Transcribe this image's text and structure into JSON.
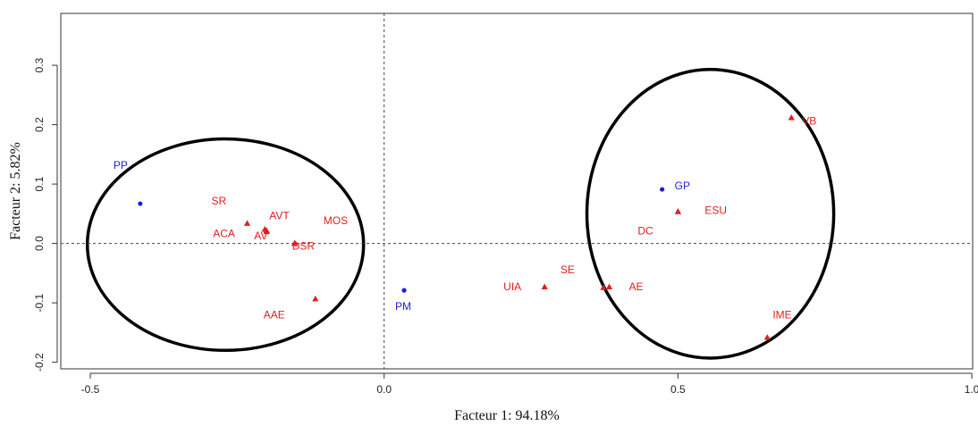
{
  "chart_data": {
    "type": "scatter",
    "title": "",
    "xlabel": "Facteur 1: 94.18%",
    "ylabel": "Facteur 2: 5.82%",
    "xlim": [
      -0.55,
      1.0
    ],
    "ylim": [
      -0.22,
      0.39
    ],
    "x_ticks": [
      -0.5,
      0.0,
      0.5,
      1.0
    ],
    "x_tick_labels": [
      "-0.5",
      "0.0",
      "0.5",
      "1.0"
    ],
    "y_ticks": [
      -0.2,
      -0.1,
      0.0,
      0.1,
      0.2,
      0.3
    ],
    "y_tick_labels": [
      "-0.2",
      "-0.1",
      "0.0",
      "0.1",
      "0.2",
      "0.3"
    ],
    "grid": false,
    "reference_lines": {
      "x": 0.0,
      "y": 0.0,
      "style": "dotted"
    },
    "series": [
      {
        "marker": "circle",
        "color": "#1f1fd6",
        "points": [
          {
            "label": "PP",
            "x": -0.415,
            "y": 0.067
          },
          {
            "label": "PM",
            "x": 0.034,
            "y": -0.079
          },
          {
            "label": "GP",
            "x": 0.473,
            "y": 0.091
          }
        ]
      },
      {
        "marker": "triangle",
        "color": "#e01e1e",
        "points": [
          {
            "label": "SR",
            "x": -0.233,
            "y": 0.034
          },
          {
            "label": "AVT",
            "x": -0.203,
            "y": 0.024
          },
          {
            "label": "ACA",
            "x": -0.2,
            "y": 0.02
          },
          {
            "label": "AV",
            "x": -0.2,
            "y": 0.022
          },
          {
            "label": "MOS",
            "x": -0.152,
            "y": 0.001
          },
          {
            "label": "DSR",
            "x": -0.152,
            "y": 0.0
          },
          {
            "label": "AAE",
            "x": -0.117,
            "y": -0.093
          },
          {
            "label": "UIA",
            "x": 0.273,
            "y": -0.073
          },
          {
            "label": "SE",
            "x": 0.373,
            "y": -0.074
          },
          {
            "label": "AE",
            "x": 0.383,
            "y": -0.073
          },
          {
            "label": "DC",
            "x": 0.5,
            "y": 0.054
          },
          {
            "label": "ESU",
            "x": 0.5,
            "y": 0.054
          },
          {
            "label": "VB",
            "x": 0.693,
            "y": 0.212
          },
          {
            "label": "IME",
            "x": 0.652,
            "y": -0.158
          }
        ]
      }
    ],
    "highlight_ellipses": [
      {
        "cx": -0.27,
        "cy": -0.002,
        "rx": 0.235,
        "ry": 0.178
      },
      {
        "cx": 0.555,
        "cy": 0.05,
        "rx": 0.21,
        "ry": 0.243
      }
    ]
  }
}
